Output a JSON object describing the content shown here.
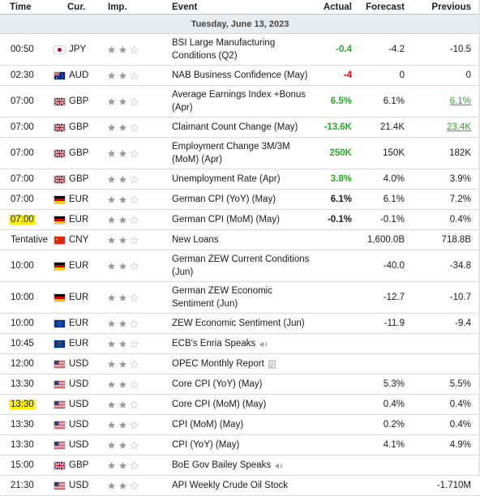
{
  "header": {
    "time": "Time",
    "cur": "Cur.",
    "imp": "Imp.",
    "event": "Event",
    "actual": "Actual",
    "forecast": "Forecast",
    "previous": "Previous"
  },
  "date": "Tuesday, June 13, 2023",
  "rows": [
    {
      "time": "00:50",
      "flag": "jp",
      "cur": "JPY",
      "imp": 2,
      "event": "BSI Large Manufacturing Conditions (Q2)",
      "actual": "-0.4",
      "actual_tone": "pos",
      "forecast": "-4.2",
      "previous": "-10.5",
      "h": 38
    },
    {
      "time": "02:30",
      "flag": "au",
      "cur": "AUD",
      "imp": 2,
      "event": "NAB Business Confidence (May)",
      "actual": "-4",
      "actual_tone": "neg",
      "forecast": "0",
      "previous": "0",
      "h": 24
    },
    {
      "time": "07:00",
      "flag": "gb",
      "cur": "GBP",
      "imp": 2,
      "event": "Average Earnings Index +Bonus (Apr)",
      "actual": "6.5%",
      "actual_tone": "pos",
      "forecast": "6.1%",
      "previous": "6.1%",
      "previous_tone": "pos",
      "h": 38
    },
    {
      "time": "07:00",
      "flag": "gb",
      "cur": "GBP",
      "imp": 2,
      "event": "Claimant Count Change (May)",
      "actual": "-13.6K",
      "actual_tone": "pos",
      "forecast": "21.4K",
      "previous": "23.4K",
      "previous_tone": "pos",
      "h": 24
    },
    {
      "time": "07:00",
      "flag": "gb",
      "cur": "GBP",
      "imp": 2,
      "event": "Employment Change 3M/3M (MoM) (Apr)",
      "actual": "250K",
      "actual_tone": "pos",
      "forecast": "150K",
      "previous": "182K",
      "h": 38
    },
    {
      "time": "07:00",
      "flag": "gb",
      "cur": "GBP",
      "imp": 2,
      "event": "Unemployment Rate (Apr)",
      "actual": "3.8%",
      "actual_tone": "pos",
      "forecast": "4.0%",
      "previous": "3.9%",
      "h": 24
    },
    {
      "time": "07:00",
      "flag": "de",
      "cur": "EUR",
      "imp": 2,
      "event": "German CPI (YoY) (May)",
      "actual": "6.1%",
      "actual_tone": "neutral",
      "forecast": "6.1%",
      "previous": "7.2%",
      "h": 24
    },
    {
      "time": "07:00",
      "flag": "de",
      "cur": "EUR",
      "imp": 2,
      "event": "German CPI (MoM) (May)",
      "actual": "-0.1%",
      "actual_tone": "neutral",
      "forecast": "-0.1%",
      "previous": "0.4%",
      "h": 24,
      "highlight": true
    },
    {
      "time": "Tentative",
      "flag": "cn",
      "cur": "CNY",
      "imp": 2,
      "event": "New Loans",
      "actual": "",
      "forecast": "1,600.0B",
      "previous": "718.8B",
      "h": 24
    },
    {
      "time": "10:00",
      "flag": "de",
      "cur": "EUR",
      "imp": 2,
      "event": "German ZEW Current Conditions (Jun)",
      "actual": "",
      "forecast": "-40.0",
      "previous": "-34.8",
      "h": 38
    },
    {
      "time": "10:00",
      "flag": "de",
      "cur": "EUR",
      "imp": 2,
      "event": "German ZEW Economic Sentiment (Jun)",
      "actual": "",
      "forecast": "-12.7",
      "previous": "-10.7",
      "h": 38
    },
    {
      "time": "10:00",
      "flag": "eu",
      "cur": "EUR",
      "imp": 2,
      "event": "ZEW Economic Sentiment (Jun)",
      "actual": "",
      "forecast": "-11.9",
      "previous": "-9.4",
      "h": 24
    },
    {
      "time": "10:45",
      "flag": "eu",
      "cur": "EUR",
      "imp": 2,
      "event": "ECB's Enria Speaks",
      "icon": "speaker-icon",
      "actual": "",
      "forecast": "",
      "previous": "",
      "h": 24
    },
    {
      "time": "12:00",
      "flag": "us",
      "cur": "USD",
      "imp": 2,
      "event": "OPEC Monthly Report",
      "icon": "report-icon",
      "actual": "",
      "forecast": "",
      "previous": "",
      "h": 24
    },
    {
      "time": "13:30",
      "flag": "us",
      "cur": "USD",
      "imp": 2,
      "event": "Core CPI (YoY) (May)",
      "actual": "",
      "forecast": "5.3%",
      "previous": "5.5%",
      "h": 24
    },
    {
      "time": "13:30",
      "flag": "us",
      "cur": "USD",
      "imp": 2,
      "event": "Core CPI (MoM) (May)",
      "actual": "",
      "forecast": "0.4%",
      "previous": "0.4%",
      "h": 24,
      "highlight": true
    },
    {
      "time": "13:30",
      "flag": "us",
      "cur": "USD",
      "imp": 2,
      "event": "CPI (MoM) (May)",
      "actual": "",
      "forecast": "0.2%",
      "previous": "0.4%",
      "h": 24
    },
    {
      "time": "13:30",
      "flag": "us",
      "cur": "USD",
      "imp": 2,
      "event": "CPI (YoY) (May)",
      "actual": "",
      "forecast": "4.1%",
      "previous": "4.9%",
      "h": 24
    },
    {
      "time": "15:00",
      "flag": "gb",
      "cur": "GBP",
      "imp": 2,
      "event": "BoE Gov Bailey Speaks",
      "icon": "speaker-icon",
      "actual": "",
      "forecast": "",
      "previous": "",
      "h": 24
    },
    {
      "time": "21:30",
      "flag": "us",
      "cur": "USD",
      "imp": 2,
      "event": "API Weekly Crude Oil Stock",
      "actual": "",
      "forecast": "",
      "previous": "-1.710M",
      "h": 24
    }
  ],
  "colors": {
    "positive": "#2ba82b",
    "negative": "#e60000",
    "highlight": "#fff200",
    "star_on": "#9a9a9a",
    "star_off": "#cfcfcf"
  }
}
